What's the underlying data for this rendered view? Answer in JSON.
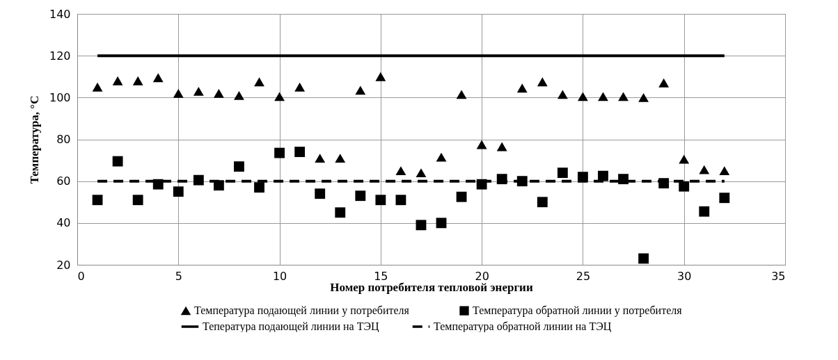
{
  "chart_data": {
    "type": "scatter",
    "xlabel": "Номер потребителя тепловой энергии",
    "ylabel": "Температура, °C",
    "xlim": [
      0,
      35
    ],
    "xticks": [
      0,
      5,
      10,
      15,
      20,
      25,
      30,
      35
    ],
    "ylim": [
      20,
      140
    ],
    "yticks": [
      20,
      40,
      60,
      80,
      100,
      120,
      140
    ],
    "grid": true,
    "legend": "bottom",
    "series": [
      {
        "name": "Температура подающей линии у потребителя",
        "marker": "triangle",
        "color": "#000000",
        "x": [
          1,
          2,
          3,
          4,
          5,
          6,
          7,
          8,
          9,
          10,
          11,
          12,
          13,
          14,
          15,
          16,
          17,
          18,
          19,
          20,
          21,
          22,
          23,
          24,
          25,
          26,
          27,
          28,
          29,
          30,
          31,
          32
        ],
        "values": [
          105,
          108,
          108,
          109.5,
          102,
          103,
          102,
          101,
          107.5,
          100.5,
          105,
          71,
          71,
          103.5,
          110,
          65,
          64,
          71.5,
          101.5,
          77.5,
          76.5,
          104.5,
          107.5,
          101.5,
          100.5,
          100.5,
          100.5,
          100,
          107,
          70.5,
          65.5,
          65
        ]
      },
      {
        "name": "Температура обратной линии у потребителя",
        "marker": "square",
        "color": "#000000",
        "x": [
          1,
          2,
          3,
          4,
          5,
          6,
          7,
          8,
          9,
          10,
          11,
          12,
          13,
          14,
          15,
          16,
          17,
          18,
          19,
          20,
          21,
          22,
          23,
          24,
          25,
          26,
          27,
          28,
          29,
          30,
          31,
          32
        ],
        "values": [
          51,
          69.5,
          51,
          58.5,
          55,
          60.5,
          58,
          67,
          57,
          73.5,
          74,
          54,
          45,
          53,
          51,
          51,
          39,
          40,
          52.5,
          58.5,
          61,
          60,
          50,
          64,
          62,
          62.5,
          61,
          23,
          59,
          57.5,
          45.5,
          52
        ]
      },
      {
        "name": "Тепература подающей линии на ТЭЦ",
        "type": "line",
        "line_style": "solid",
        "marker": "none",
        "color": "#000000",
        "x": [
          1,
          32
        ],
        "values": [
          120,
          120
        ]
      },
      {
        "name": "Температура обратной линии на ТЭЦ",
        "type": "line",
        "line_style": "dashed",
        "marker": "none",
        "color": "#000000",
        "x": [
          1,
          32
        ],
        "values": [
          60,
          60
        ]
      }
    ]
  }
}
